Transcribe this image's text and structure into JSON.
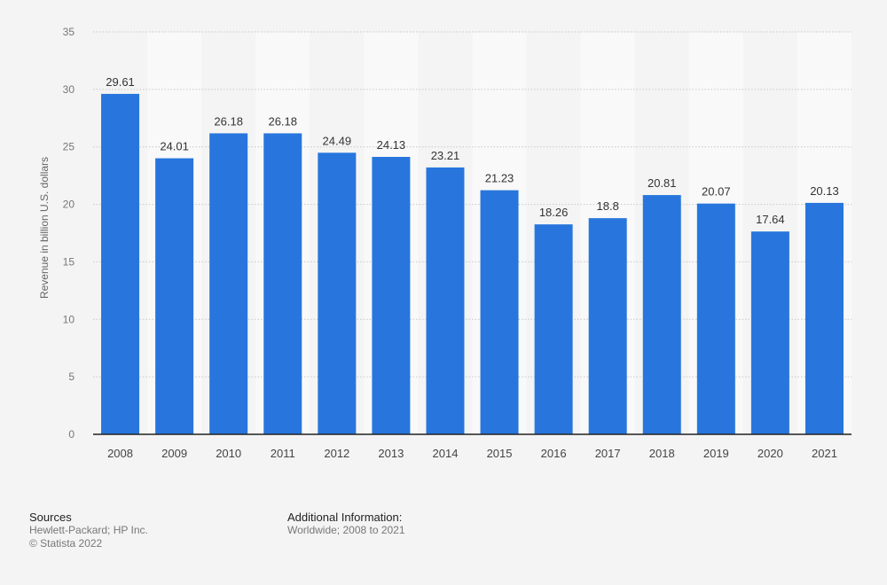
{
  "chart_data": {
    "type": "bar",
    "categories": [
      "2008",
      "2009",
      "2010",
      "2011",
      "2012",
      "2013",
      "2014",
      "2015",
      "2016",
      "2017",
      "2018",
      "2019",
      "2020",
      "2021"
    ],
    "values": [
      29.61,
      24.01,
      26.18,
      26.18,
      24.49,
      24.13,
      23.21,
      21.23,
      18.26,
      18.8,
      20.81,
      20.07,
      17.64,
      20.13
    ],
    "value_labels": [
      "29.61",
      "24.01",
      "26.18",
      "26.18",
      "24.49",
      "24.13",
      "23.21",
      "21.23",
      "18.26",
      "18.8",
      "20.81",
      "20.07",
      "17.64",
      "20.13"
    ],
    "title": "",
    "xlabel": "",
    "ylabel": "Revenue in billion U.S. dollars",
    "ylim": [
      0,
      35
    ],
    "yticks": [
      0,
      5,
      10,
      15,
      20,
      25,
      30,
      35
    ],
    "grid": true,
    "bar_color": "#2876dd"
  },
  "footer": {
    "sources_heading": "Sources",
    "sources_line1": "Hewlett-Packard; HP Inc.",
    "sources_line2": "© Statista 2022",
    "additional_heading": "Additional Information:",
    "additional_text": "Worldwide; 2008 to 2021"
  }
}
